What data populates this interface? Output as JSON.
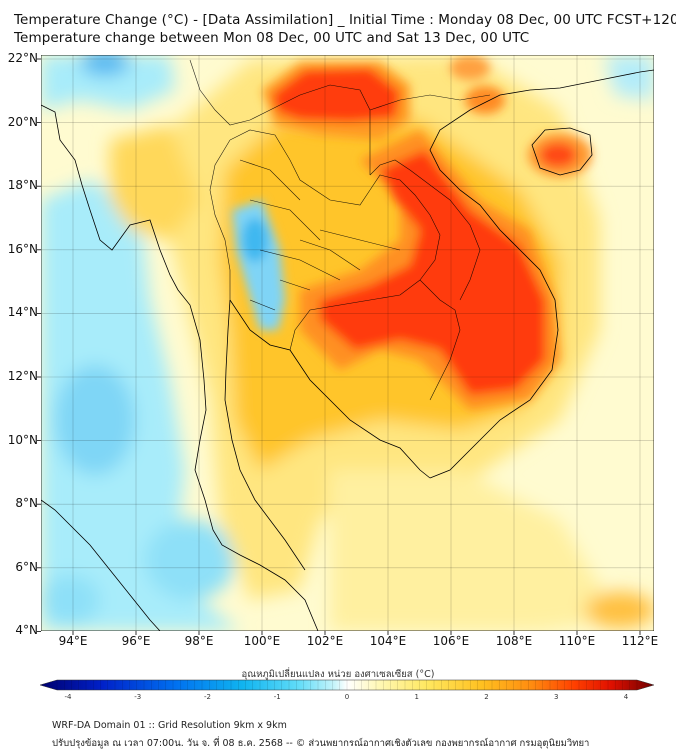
{
  "title_line1": "Temperature Change (°C) - [Data Assimilation] _ Initial Time : Monday 08 Dec, 00 UTC FCST+120",
  "title_line2": "Temperature change between Mon 08 Dec, 00 UTC and Sat 13 Dec, 00 UTC",
  "lat_labels": [
    "22°N",
    "20°N",
    "18°N",
    "16°N",
    "14°N",
    "12°N",
    "10°N",
    "8°N",
    "6°N",
    "4°N"
  ],
  "lon_labels": [
    "94°E",
    "96°E",
    "98°E",
    "100°E",
    "102°E",
    "104°E",
    "106°E",
    "108°E",
    "110°E",
    "112°E"
  ],
  "colorbar": {
    "title": "อุณหภูมิเปลี่ยนแปลง หน่วย องศาเซลเซียส (°C)",
    "ticks": [
      "-4",
      "-3",
      "-2",
      "-1",
      "0",
      "1",
      "2",
      "3",
      "4"
    ],
    "min": -4,
    "max": 4,
    "colors": [
      "#00006e",
      "#0020c8",
      "#0070f0",
      "#10b4f0",
      "#60dcf8",
      "#b8f0fa",
      "#ffffff",
      "#fff8b8",
      "#ffe860",
      "#ffc020",
      "#ff8c10",
      "#ff4000",
      "#e01000",
      "#a00000",
      "#6e0000"
    ]
  },
  "footer_line1": "WRF-DA Domain 01 :: Grid Resolution 9km x 9km",
  "footer_line2": "ปรับปรุงข้อมูล ณ เวลา 07:00น. วัน จ. ที่ 08 ธ.ค. 2568 -- © ส่วนพยากรณ์อากาศเชิงตัวเลข กองพยากรณ์อากาศ กรมอุตุนิยมวิทยา",
  "map_colors": {
    "background": "#fffbd0",
    "cool": "#9ee8fa",
    "cooler": "#55c8f5",
    "warm_light": "#ffec80",
    "warm": "#ffcc30",
    "warmer": "#ff9020",
    "hot": "#ff3d10",
    "border": "#000000"
  }
}
